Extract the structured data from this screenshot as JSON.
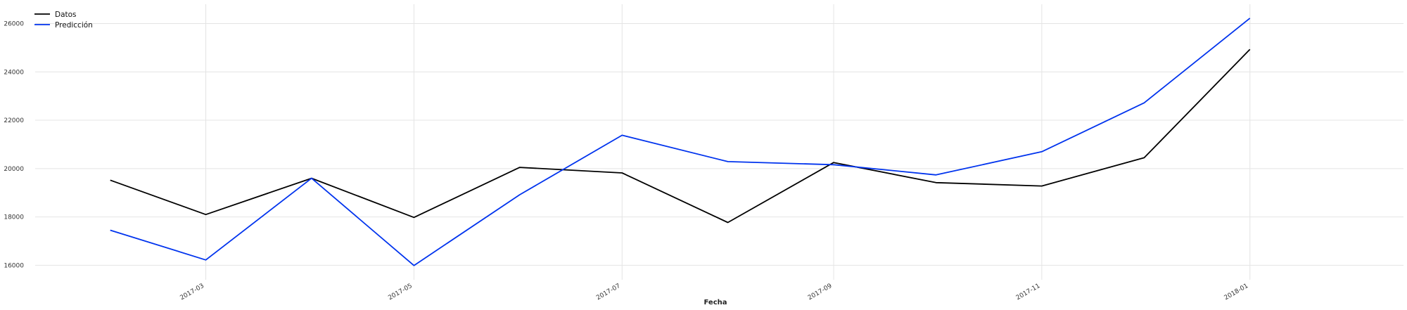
{
  "chart_data": {
    "type": "line",
    "title": "",
    "xlabel": "Fecha",
    "ylabel": "",
    "x": [
      "2017-02-01",
      "2017-03-01",
      "2017-04-01",
      "2017-05-01",
      "2017-06-01",
      "2017-07-01",
      "2017-08-01",
      "2017-09-01",
      "2017-10-01",
      "2017-11-01",
      "2017-12-01",
      "2018-01-01"
    ],
    "x_ticks": [
      "2017-03",
      "2017-05",
      "2017-07",
      "2017-09",
      "2017-11",
      "2018-01"
    ],
    "y_ticks": [
      16000,
      18000,
      20000,
      22000,
      24000,
      26000
    ],
    "xlim": [
      "2017-01-10",
      "2018-02-15"
    ],
    "ylim": [
      15400,
      26800
    ],
    "grid": true,
    "legend_position": "top-left",
    "series": [
      {
        "name": "Datos",
        "color": "#000000",
        "values": [
          19520,
          18100,
          19600,
          17980,
          20050,
          19820,
          17770,
          20250,
          19420,
          19280,
          20450,
          24930
        ]
      },
      {
        "name": "Predicción",
        "color": "#0033ee",
        "values": [
          17450,
          16220,
          19600,
          15990,
          18920,
          21380,
          20290,
          20160,
          19740,
          20700,
          22720,
          26220
        ]
      }
    ]
  }
}
